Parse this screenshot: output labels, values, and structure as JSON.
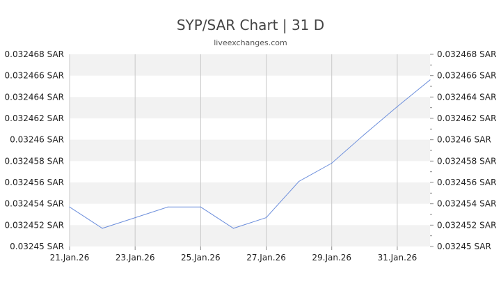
{
  "title": "SYP/SAR Chart | 31 D",
  "subtitle": "liveexchanges.com",
  "chart_data": {
    "type": "line",
    "x": [
      "21.Jan.26",
      "22.Jan.26",
      "23.Jan.26",
      "24.Jan.26",
      "25.Jan.26",
      "26.Jan.26",
      "27.Jan.26",
      "28.Jan.26",
      "29.Jan.26",
      "30.Jan.26",
      "31.Jan.26",
      "01.Feb.26"
    ],
    "y": [
      0.0324537,
      0.0324517,
      0.0324527,
      0.0324537,
      0.0324537,
      0.0324517,
      0.0324527,
      0.0324561,
      0.0324578,
      0.0324605,
      0.0324631,
      0.0324656
    ],
    "ylim": [
      0.03245,
      0.032468
    ],
    "yticks": [
      {
        "value": 0.03245,
        "label": "0.03245 SAR"
      },
      {
        "value": 0.032452,
        "label": "0.032452 SAR"
      },
      {
        "value": 0.032454,
        "label": "0.032454 SAR"
      },
      {
        "value": 0.032456,
        "label": "0.032456 SAR"
      },
      {
        "value": 0.032458,
        "label": "0.032458 SAR"
      },
      {
        "value": 0.03246,
        "label": "0.03246 SAR"
      },
      {
        "value": 0.032462,
        "label": "0.032462 SAR"
      },
      {
        "value": 0.032464,
        "label": "0.032464 SAR"
      },
      {
        "value": 0.032466,
        "label": "0.032466 SAR"
      },
      {
        "value": 0.032468,
        "label": "0.032468 SAR"
      }
    ],
    "xticks": [
      "21.Jan.26",
      "23.Jan.26",
      "25.Jan.26",
      "27.Jan.26",
      "29.Jan.26",
      "31.Jan.26"
    ],
    "grid": true,
    "line_color": "#6d8fdc",
    "band_color": "#f2f2f2",
    "gridline_color": "#c8c8c8"
  }
}
